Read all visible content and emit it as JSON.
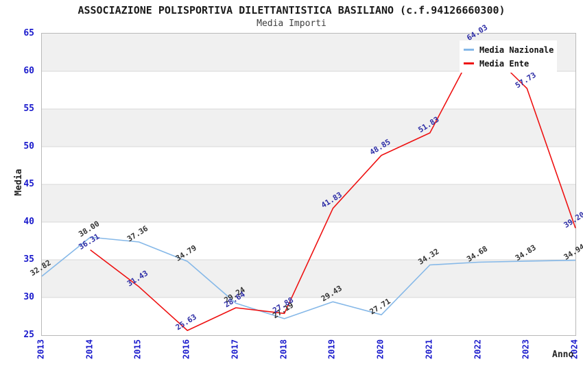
{
  "chart_data": {
    "type": "line",
    "title": "ASSOCIAZIONE POLISPORTIVA DILETTANTISTICA BASILIANO (c.f.94126660300)",
    "subtitle": "Media Importi",
    "xlabel": "Anno",
    "ylabel": "Media",
    "x_categories": [
      "2013",
      "2014",
      "2015",
      "2016",
      "2017",
      "2018",
      "2019",
      "2020",
      "2021",
      "2022",
      "2023",
      "2024"
    ],
    "ylim": [
      25,
      65
    ],
    "ytick_step": 5,
    "yticks": [
      25,
      30,
      35,
      40,
      45,
      50,
      55,
      60,
      65
    ],
    "grid": "horizontal-bands",
    "legend_position": "top-right",
    "series": [
      {
        "name": "Media Nazionale",
        "color": "#85b8e8",
        "label_color": "#333333",
        "values": [
          32.82,
          38.0,
          37.36,
          34.79,
          29.24,
          27.19,
          29.43,
          27.71,
          34.32,
          34.68,
          34.83,
          34.94
        ]
      },
      {
        "name": "Media Ente",
        "color": "#ee1111",
        "label_color": "#2e2ea6",
        "values": [
          null,
          36.31,
          31.43,
          25.63,
          28.64,
          27.88,
          41.83,
          48.85,
          51.83,
          64.03,
          57.73,
          39.2
        ]
      }
    ],
    "style": {
      "band_color_a": "#f0f0f0",
      "band_color_b": "#ffffff",
      "grid_color": "#d9d9d9",
      "axis_tick_color": "#1a1acc",
      "plot_border_color": "#b9b9b9"
    }
  }
}
